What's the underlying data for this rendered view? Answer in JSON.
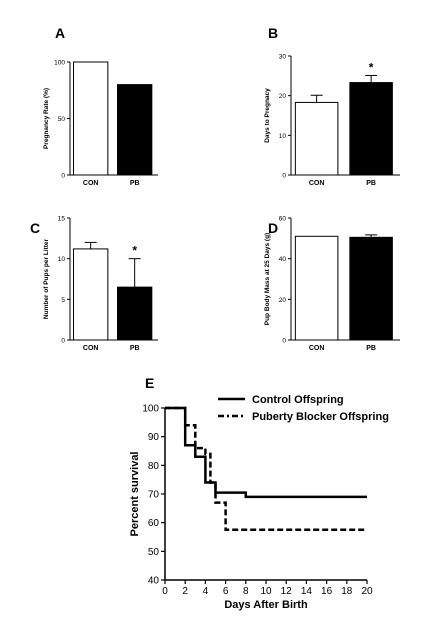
{
  "colors": {
    "con": "#ffffff",
    "pb": "#000000",
    "axis": "#000000"
  },
  "chart_data": [
    {
      "panel": "A",
      "type": "bar",
      "categories": [
        "CON",
        "PB"
      ],
      "values": [
        100,
        80
      ],
      "errors": [
        0,
        0
      ],
      "ylabel": "Pregnancy Rate (%)",
      "ylim": [
        0,
        100
      ],
      "yticks": [
        0,
        50,
        100
      ],
      "significance": [
        "",
        ""
      ]
    },
    {
      "panel": "B",
      "type": "bar",
      "categories": [
        "CON",
        "PB"
      ],
      "values": [
        18.3,
        23.3
      ],
      "errors": [
        1.8,
        1.8
      ],
      "ylabel": "Days to Pregnacy",
      "ylim": [
        0,
        30
      ],
      "yticks": [
        0,
        10,
        20,
        30
      ],
      "significance": [
        "",
        "*"
      ]
    },
    {
      "panel": "C",
      "type": "bar",
      "categories": [
        "CON",
        "PB"
      ],
      "values": [
        11.2,
        6.5
      ],
      "errors": [
        0.8,
        3.5
      ],
      "ylabel": "Number of Pups per Litter",
      "ylim": [
        0,
        15
      ],
      "yticks": [
        0,
        5,
        10,
        15
      ],
      "significance": [
        "",
        "*"
      ]
    },
    {
      "panel": "D",
      "type": "bar",
      "categories": [
        "CON",
        "PB"
      ],
      "values": [
        51,
        50.5
      ],
      "errors": [
        0,
        1.2
      ],
      "ylabel": "Pup Body Mass at 25 Days (g)",
      "ylim": [
        0,
        60
      ],
      "yticks": [
        0,
        20,
        40,
        60
      ],
      "significance": [
        "",
        ""
      ]
    },
    {
      "panel": "E",
      "type": "line",
      "xlabel": "Days After Birth",
      "ylabel": "Percent survival",
      "xlim": [
        0,
        20
      ],
      "ylim": [
        40,
        100
      ],
      "xticks": [
        0,
        2,
        4,
        6,
        8,
        10,
        12,
        14,
        16,
        18,
        20
      ],
      "yticks": [
        40,
        50,
        60,
        70,
        80,
        90,
        100
      ],
      "legend_position": "top-right",
      "series": [
        {
          "name": "Control Offspring",
          "style": "solid",
          "steps": [
            [
              0,
              100
            ],
            [
              2,
              100
            ],
            [
              2,
              87
            ],
            [
              3,
              87
            ],
            [
              3,
              83
            ],
            [
              4,
              83
            ],
            [
              4,
              74
            ],
            [
              5,
              74
            ],
            [
              5,
              70.5
            ],
            [
              8,
              70.5
            ],
            [
              8,
              69
            ],
            [
              20,
              69
            ]
          ]
        },
        {
          "name": "Puberty Blocker Offspring",
          "style": "dashed",
          "steps": [
            [
              0,
              100
            ],
            [
              2,
              100
            ],
            [
              2,
              94
            ],
            [
              3,
              94
            ],
            [
              3,
              86
            ],
            [
              4,
              86
            ],
            [
              4,
              84
            ],
            [
              4.5,
              84
            ],
            [
              4.5,
              74
            ],
            [
              5,
              74
            ],
            [
              5,
              67
            ],
            [
              6,
              67
            ],
            [
              6,
              57.5
            ],
            [
              20,
              57.5
            ]
          ]
        }
      ]
    }
  ]
}
